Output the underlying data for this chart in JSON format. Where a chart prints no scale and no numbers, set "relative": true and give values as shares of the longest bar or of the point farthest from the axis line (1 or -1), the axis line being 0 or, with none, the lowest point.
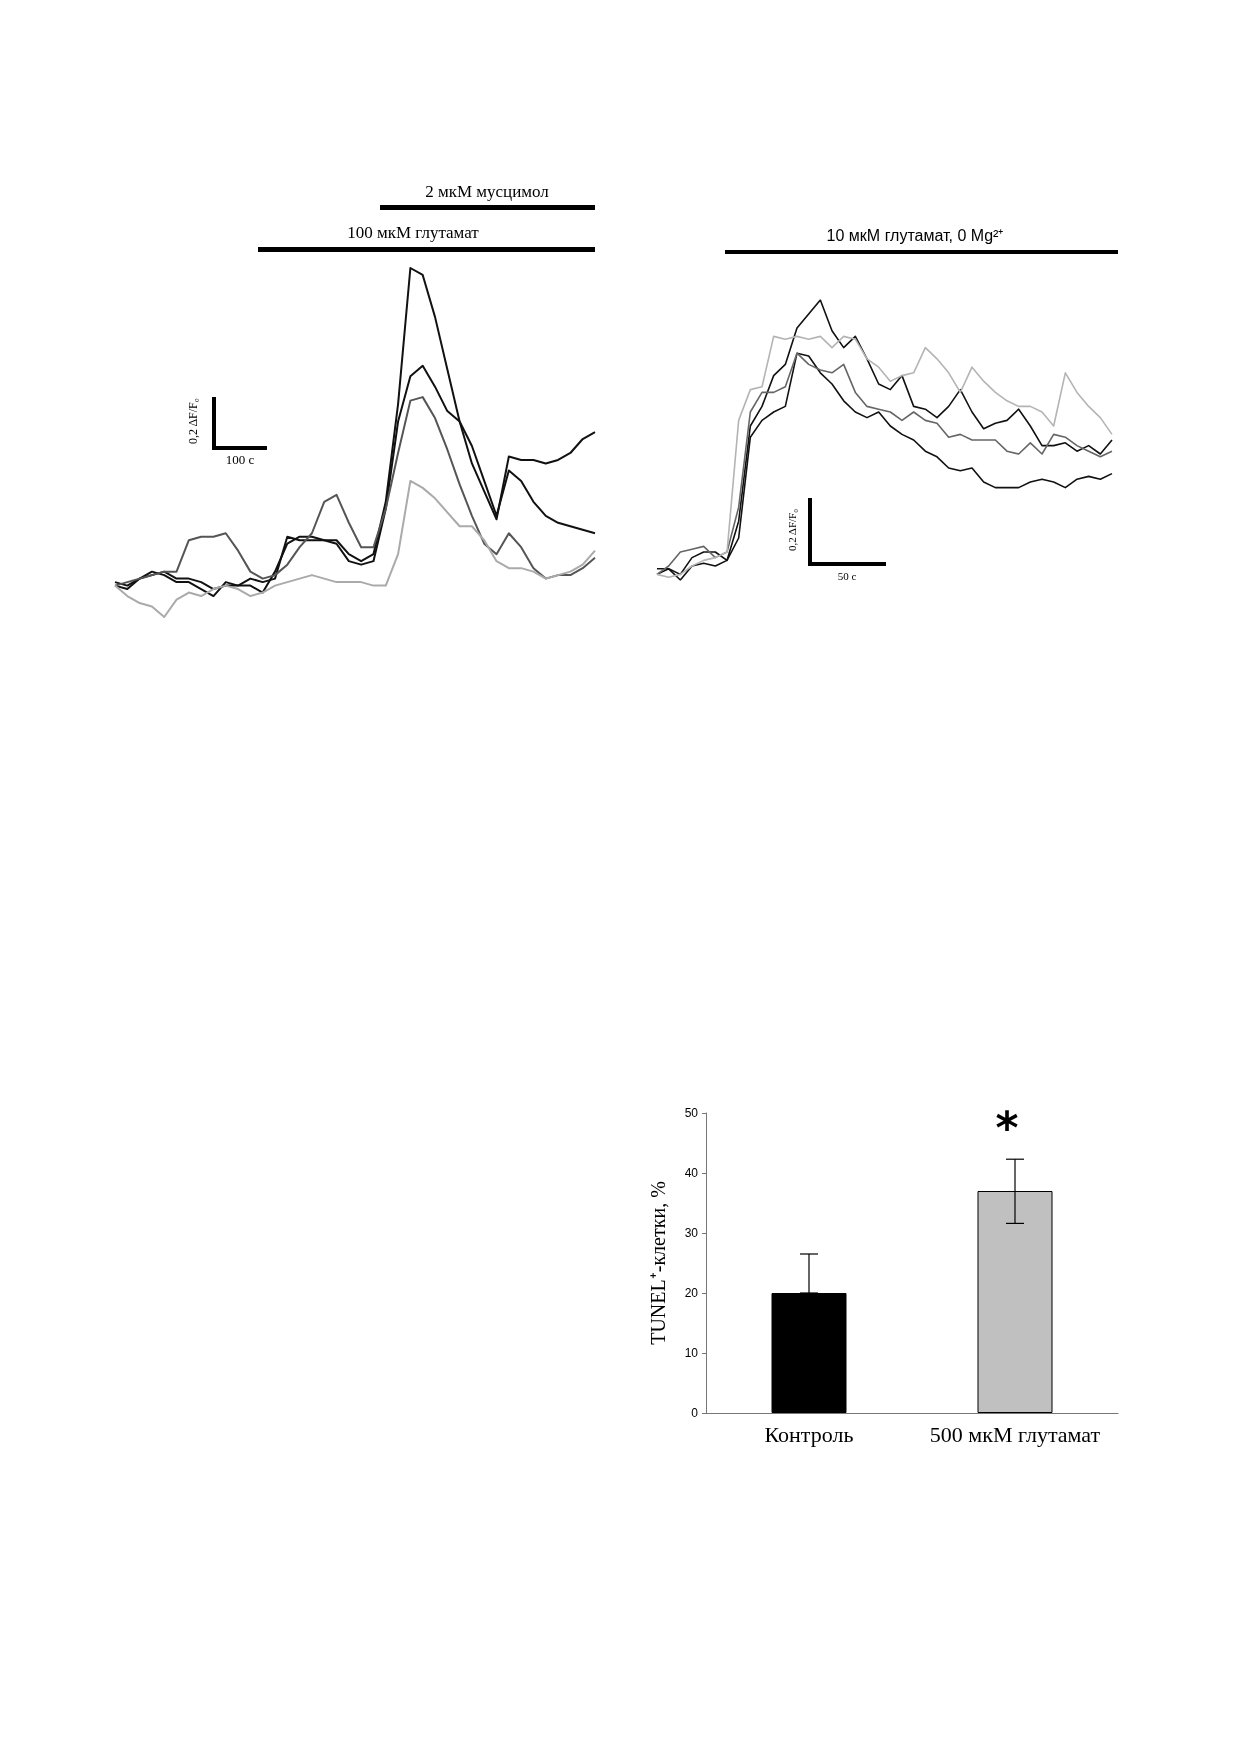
{
  "chart_data": [
    {
      "type": "line",
      "relative": true,
      "tick_labels": false,
      "marker": "none",
      "line_style": "solid",
      "categories": [
        null,
        null,
        null,
        null,
        null,
        null,
        null,
        null,
        null,
        null,
        null,
        null,
        null,
        null,
        null,
        null,
        null,
        null,
        null,
        null,
        null,
        null,
        null,
        null,
        null,
        null,
        null,
        null,
        null,
        null,
        null,
        null,
        null,
        null,
        null,
        null,
        null,
        null,
        null,
        null
      ],
      "series": [
        {
          "color": "#111111",
          "values": [
            0.1,
            0.09,
            0.11,
            0.12,
            0.13,
            0.11,
            0.11,
            0.1,
            0.08,
            0.09,
            0.09,
            0.11,
            0.1,
            0.11,
            0.23,
            0.22,
            0.22,
            0.22,
            0.22,
            0.18,
            0.16,
            0.18,
            0.33,
            0.61,
            1.0,
            0.98,
            0.86,
            0.71,
            0.56,
            0.44,
            0.36,
            0.28,
            0.46,
            0.45,
            0.45,
            0.44,
            0.45,
            0.47,
            0.51,
            0.53
          ]
        },
        {
          "color": "#111111",
          "values": [
            0.09,
            0.08,
            0.11,
            0.13,
            0.12,
            0.1,
            0.1,
            0.08,
            0.06,
            0.1,
            0.09,
            0.09,
            0.07,
            0.13,
            0.21,
            0.23,
            0.23,
            0.22,
            0.21,
            0.16,
            0.15,
            0.16,
            0.31,
            0.56,
            0.69,
            0.72,
            0.66,
            0.59,
            0.56,
            0.49,
            0.39,
            0.29,
            0.42,
            0.39,
            0.33,
            0.29,
            0.27,
            0.26,
            0.25,
            0.24
          ]
        },
        {
          "color": "#555555",
          "values": [
            0.09,
            0.1,
            0.11,
            0.12,
            0.13,
            0.13,
            0.22,
            0.23,
            0.23,
            0.24,
            0.19,
            0.13,
            0.11,
            0.12,
            0.15,
            0.2,
            0.24,
            0.33,
            0.35,
            0.27,
            0.2,
            0.2,
            0.31,
            0.47,
            0.62,
            0.63,
            0.57,
            0.48,
            0.38,
            0.29,
            0.21,
            0.18,
            0.24,
            0.2,
            0.14,
            0.11,
            0.12,
            0.12,
            0.14,
            0.17
          ]
        },
        {
          "color": "#aaaaaa",
          "values": [
            0.09,
            0.06,
            0.04,
            0.03,
            0.0,
            0.05,
            0.07,
            0.06,
            0.08,
            0.09,
            0.08,
            0.06,
            0.07,
            0.09,
            0.1,
            0.11,
            0.12,
            0.11,
            0.1,
            0.1,
            0.1,
            0.09,
            0.09,
            0.18,
            0.39,
            0.37,
            0.34,
            0.3,
            0.26,
            0.26,
            0.22,
            0.16,
            0.14,
            0.14,
            0.13,
            0.11,
            0.12,
            0.13,
            0.15,
            0.19
          ]
        }
      ],
      "annotations": [
        "2 мкМ мусцимол",
        "100 мкМ глутамат",
        "0,2 ΔF/F₀",
        "100 с"
      ]
    },
    {
      "type": "line",
      "relative": true,
      "tick_labels": false,
      "marker": "none",
      "line_style": "solid",
      "categories": [
        null,
        null,
        null,
        null,
        null,
        null,
        null,
        null,
        null,
        null,
        null,
        null,
        null,
        null,
        null,
        null,
        null,
        null,
        null,
        null,
        null,
        null,
        null,
        null,
        null,
        null,
        null,
        null,
        null,
        null,
        null,
        null,
        null,
        null,
        null,
        null,
        null,
        null,
        null,
        null
      ],
      "series": [
        {
          "color": "#111111",
          "values": [
            0.04,
            0.04,
            0.02,
            0.08,
            0.1,
            0.1,
            0.07,
            0.21,
            0.55,
            0.62,
            0.73,
            0.77,
            0.9,
            0.95,
            1.0,
            0.89,
            0.83,
            0.87,
            0.79,
            0.7,
            0.68,
            0.73,
            0.62,
            0.61,
            0.58,
            0.62,
            0.68,
            0.6,
            0.54,
            0.56,
            0.57,
            0.61,
            0.55,
            0.48,
            0.48,
            0.49,
            0.46,
            0.48,
            0.45,
            0.5
          ]
        },
        {
          "color": "#111111",
          "values": [
            0.02,
            0.04,
            0.0,
            0.05,
            0.06,
            0.05,
            0.07,
            0.15,
            0.51,
            0.57,
            0.6,
            0.62,
            0.81,
            0.8,
            0.74,
            0.7,
            0.64,
            0.6,
            0.58,
            0.6,
            0.55,
            0.52,
            0.5,
            0.46,
            0.44,
            0.4,
            0.39,
            0.4,
            0.35,
            0.33,
            0.33,
            0.33,
            0.35,
            0.36,
            0.35,
            0.33,
            0.36,
            0.37,
            0.36,
            0.38
          ]
        },
        {
          "color": "#666666",
          "values": [
            0.02,
            0.05,
            0.1,
            0.11,
            0.12,
            0.08,
            0.1,
            0.26,
            0.6,
            0.67,
            0.67,
            0.69,
            0.81,
            0.77,
            0.75,
            0.74,
            0.77,
            0.67,
            0.62,
            0.61,
            0.6,
            0.57,
            0.6,
            0.57,
            0.56,
            0.51,
            0.52,
            0.5,
            0.5,
            0.5,
            0.46,
            0.45,
            0.49,
            0.45,
            0.52,
            0.51,
            0.48,
            0.46,
            0.44,
            0.46
          ]
        },
        {
          "color": "#b4b4b4",
          "values": [
            0.02,
            0.01,
            0.02,
            0.05,
            0.07,
            0.08,
            0.1,
            0.57,
            0.68,
            0.69,
            0.87,
            0.86,
            0.87,
            0.86,
            0.87,
            0.83,
            0.87,
            0.86,
            0.79,
            0.76,
            0.71,
            0.73,
            0.74,
            0.83,
            0.79,
            0.74,
            0.67,
            0.76,
            0.71,
            0.67,
            0.64,
            0.62,
            0.62,
            0.6,
            0.55,
            0.74,
            0.67,
            0.62,
            0.58,
            0.52
          ]
        }
      ],
      "annotations": [
        "10 мкМ глутамат, 0 Mg²⁺",
        "0,2 ΔF/F₀",
        "50 с"
      ]
    },
    {
      "type": "bar",
      "categories": [
        "Контроль",
        "500 мкМ глутамат"
      ],
      "values": [
        20,
        37
      ],
      "colors": [
        "#000000",
        "#c0c0c0"
      ],
      "errors": [
        [
          20,
          26.5
        ],
        [
          31.6,
          42.3
        ]
      ],
      "ylabel": "TUNEL⁺-клетки, %",
      "ylim": [
        0,
        50
      ],
      "yticks": [
        0,
        10,
        20,
        30,
        40,
        50
      ],
      "annotations": [
        "*"
      ]
    }
  ]
}
